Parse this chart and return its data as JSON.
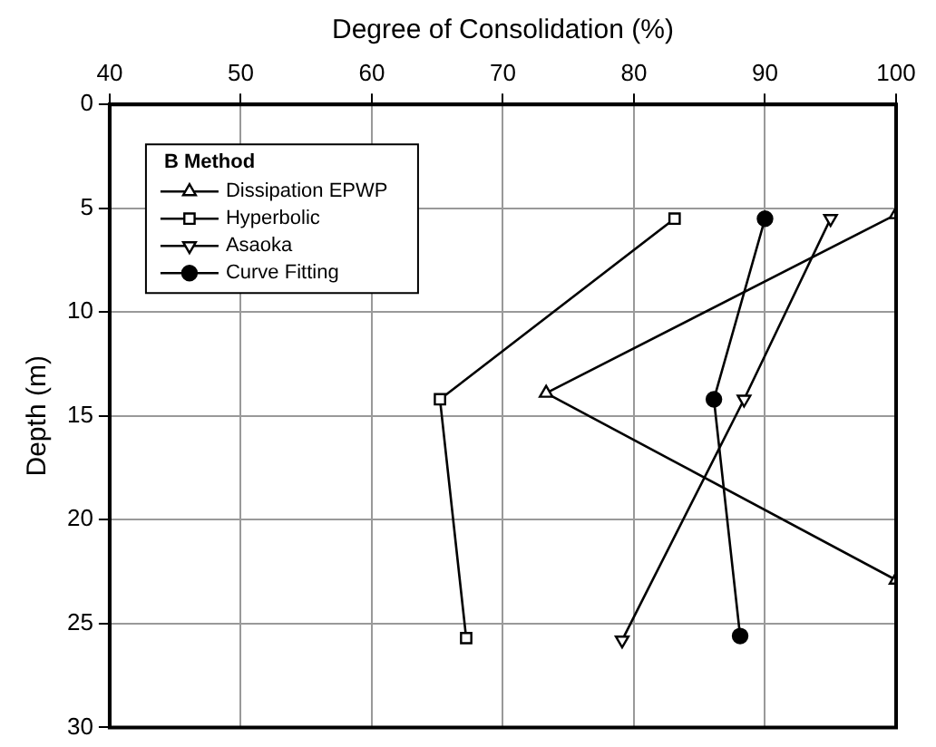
{
  "chart_data": {
    "type": "line",
    "xlabel": "Degree of Consolidation (%)",
    "ylabel": "Depth (m)",
    "legend_title": "B Method",
    "legend": "top left",
    "grid": true,
    "line_style": "solid",
    "xlim": [
      40,
      100
    ],
    "xticks": [
      40,
      50,
      60,
      70,
      80,
      90,
      100
    ],
    "ylim": [
      30,
      0
    ],
    "yticks": [
      0,
      5,
      10,
      15,
      20,
      25,
      30
    ],
    "series": [
      {
        "name": "Dissipation EPWP",
        "color": "#000000",
        "marker": "triangle",
        "x": [
          100,
          73.3,
          100
        ],
        "values": [
          5.3,
          13.9,
          22.9
        ]
      },
      {
        "name": "Hyperbolic",
        "color": "#000000",
        "marker": "square",
        "x": [
          83.1,
          65.2,
          67.2
        ],
        "values": [
          5.5,
          14.2,
          25.7
        ]
      },
      {
        "name": "Asaoka",
        "color": "#000000",
        "marker": "triangle-down",
        "x": [
          95,
          88.4,
          79.1
        ],
        "values": [
          5.5,
          14.2,
          25.8
        ]
      },
      {
        "name": "Curve Fitting",
        "color": "#000000",
        "marker": "circle",
        "x": [
          90,
          86.1,
          88.1
        ],
        "values": [
          5.5,
          14.2,
          25.6
        ]
      }
    ]
  }
}
